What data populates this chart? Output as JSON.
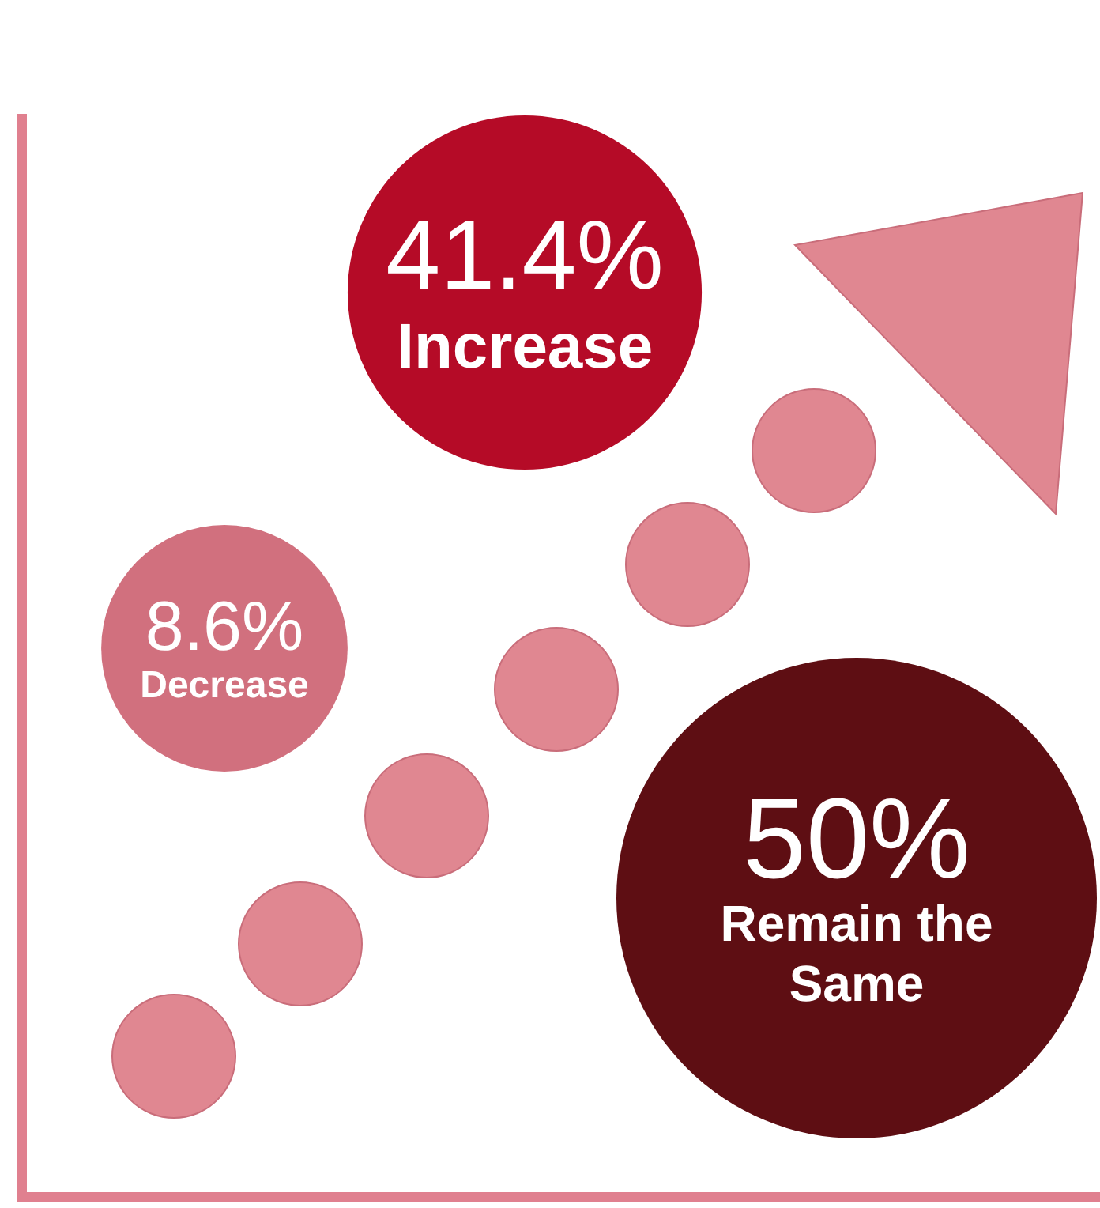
{
  "chart_data": {
    "type": "other",
    "categories": [
      "Increase",
      "Decrease",
      "Remain the Same"
    ],
    "values": [
      41.4,
      8.6,
      50
    ],
    "value_labels": [
      "41.4%",
      "8.6%",
      "50%"
    ],
    "colors": [
      "#b50b27",
      "#d1707e",
      "#5e0e13"
    ]
  }
}
